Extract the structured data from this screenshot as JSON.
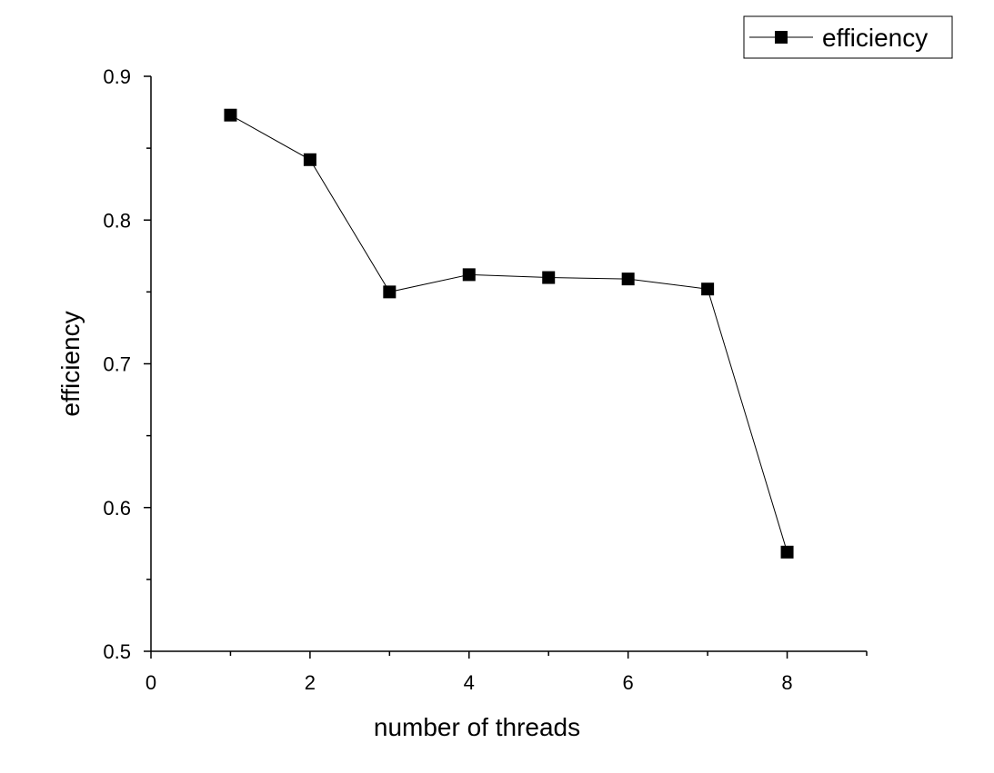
{
  "chart_data": {
    "type": "line",
    "title": "",
    "xlabel": "number of threads",
    "ylabel": "efficiency",
    "xlim": [
      0,
      9
    ],
    "ylim": [
      0.5,
      0.9
    ],
    "x_ticks": [
      0,
      2,
      4,
      6,
      8
    ],
    "y_ticks": [
      0.5,
      0.6,
      0.7,
      0.8,
      0.9
    ],
    "x_tick_labels": [
      "0",
      "2",
      "4",
      "6",
      "8"
    ],
    "y_tick_labels": [
      "0.5",
      "0.6",
      "0.7",
      "0.8",
      "0.9"
    ],
    "grid": false,
    "legend_position": "top-right",
    "series": [
      {
        "name": "efficiency",
        "marker": "square",
        "color": "#000000",
        "x": [
          1,
          2,
          3,
          4,
          5,
          6,
          7,
          8
        ],
        "y": [
          0.873,
          0.842,
          0.75,
          0.762,
          0.76,
          0.759,
          0.752,
          0.569
        ]
      }
    ]
  }
}
